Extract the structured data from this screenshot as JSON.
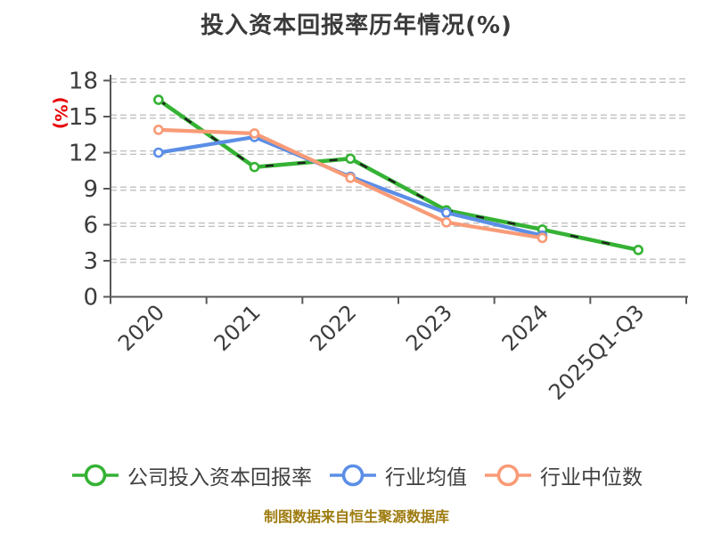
{
  "title": "投入资本回报率历年情况(%)",
  "footer_note": "制图数据来自恒生聚源数据库",
  "colors": {
    "title_text": "#3a3a3a",
    "axis": "#58585a",
    "tick_label": "#3d3d3d",
    "grid_outline": "#b3b3b3",
    "grid_inner": "#ffffff",
    "ylabel_red": "#e60000",
    "footer_gold": "#9e7c10",
    "series_company_green": "#35b234",
    "series_mean_blue": "#5b8ee6",
    "series_median_orange": "#f89b77",
    "green_dash_overlay": "#1f1f1f",
    "marker_fill": "#ffffff"
  },
  "chart_data": {
    "type": "line",
    "title": "投入资本回报率历年情况(%)",
    "ylabel": "(%)",
    "xlabel": "",
    "categories": [
      "2020",
      "2021",
      "2022",
      "2023",
      "2024",
      "2025Q1-Q3"
    ],
    "series": [
      {
        "name": "公司投入资本回报率",
        "color": "#35b234",
        "line_width": 4.5,
        "overlay_dashes": true,
        "values": [
          16.4,
          10.8,
          11.5,
          7.2,
          5.6,
          3.9
        ]
      },
      {
        "name": "行业均值",
        "color": "#5b8ee6",
        "line_width": 4.2,
        "overlay_dashes": false,
        "values": [
          12.0,
          13.3,
          10.0,
          7.0,
          5.1,
          null
        ]
      },
      {
        "name": "行业中位数",
        "color": "#f89b77",
        "line_width": 4.2,
        "overlay_dashes": false,
        "values": [
          13.9,
          13.6,
          9.9,
          6.2,
          4.9,
          null
        ]
      }
    ],
    "ylim": [
      0,
      18
    ],
    "yticks": [
      0,
      3,
      6,
      9,
      12,
      15,
      18
    ],
    "grid": "horizontal-dashed-white-with-gray-outline",
    "marker": "open-circle-white-fill",
    "legend_position": "bottom",
    "x_tick_label_rotation": 45
  }
}
